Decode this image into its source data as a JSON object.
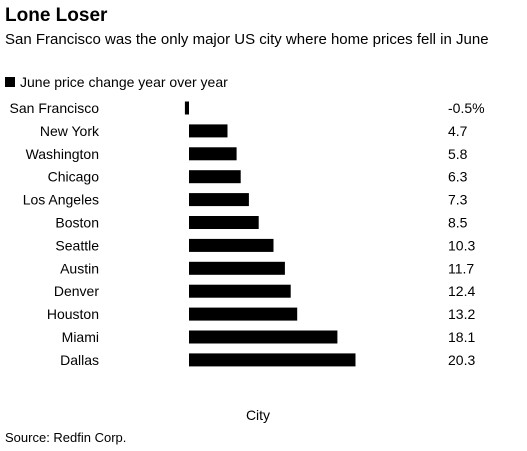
{
  "chart_data": {
    "type": "bar",
    "orientation": "horizontal",
    "title": "Lone Loser",
    "subtitle": "San Francisco was the only major US city where home prices fell in June",
    "xlabel": "City",
    "ylabel": "",
    "legend": {
      "placement": "top-left",
      "entries": [
        "June price change year over year"
      ]
    },
    "categories": [
      "San Francisco",
      "New York",
      "Washington",
      "Chicago",
      "Los Angeles",
      "Boston",
      "Seattle",
      "Austin",
      "Denver",
      "Houston",
      "Miami",
      "Dallas"
    ],
    "series": [
      {
        "name": "June price change year over year",
        "values": [
          -0.5,
          4.7,
          5.8,
          6.3,
          7.3,
          8.5,
          10.3,
          11.7,
          12.4,
          13.2,
          18.1,
          20.3
        ],
        "value_labels": [
          "-0.5%",
          "4.7",
          "5.8",
          "6.3",
          "7.3",
          "8.5",
          "10.3",
          "11.7",
          "12.4",
          "13.2",
          "18.1",
          "20.3"
        ],
        "color": "#000000"
      }
    ],
    "source": "Source: Redfin Corp."
  }
}
